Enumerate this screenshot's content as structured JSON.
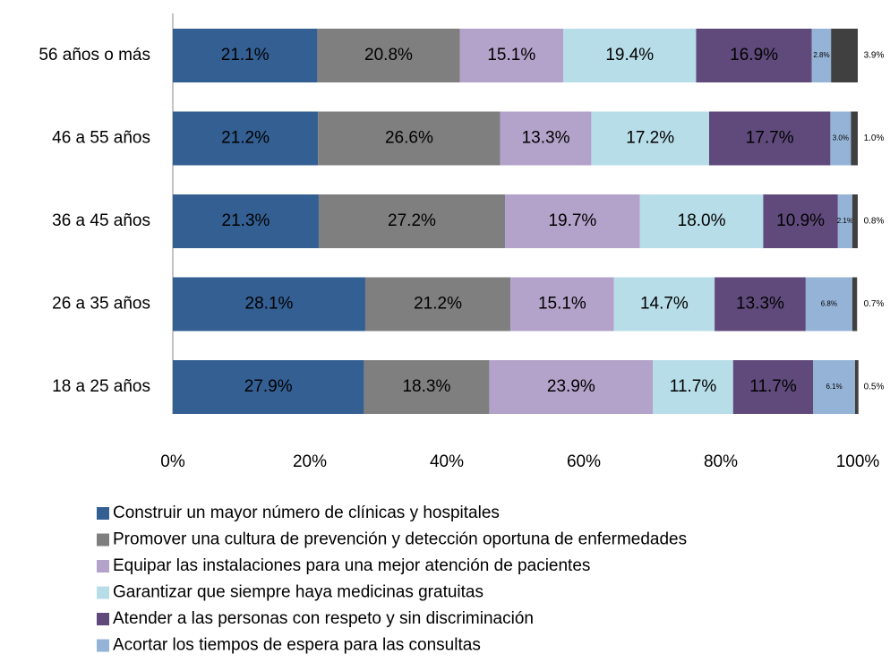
{
  "chart_data": {
    "type": "stacked-barh",
    "categories": [
      "56 años o más",
      "46 a 55 años",
      "36 a 45 años",
      "26 a 35 años",
      "18 a 25 años"
    ],
    "series": [
      {
        "name": "Construir un mayor número de clínicas y hospitales",
        "color": "#335f93",
        "values": [
          21.1,
          21.2,
          21.3,
          28.1,
          27.9
        ],
        "value_labels": [
          "21.1%",
          "21.2%",
          "21.3%",
          "28.1%",
          "27.9%"
        ]
      },
      {
        "name": "Promover una cultura de prevención y detección oportuna de enfermedades",
        "color": "#7f7f7f",
        "values": [
          20.8,
          26.6,
          27.2,
          21.2,
          18.3
        ],
        "value_labels": [
          "20.8%",
          "26.6%",
          "27.2%",
          "21.2%",
          "18.3%"
        ]
      },
      {
        "name": "Equipar las instalaciones para una mejor atención de pacientes",
        "color": "#b3a2c9",
        "values": [
          15.1,
          13.3,
          19.7,
          15.1,
          23.9
        ],
        "value_labels": [
          "15.1%",
          "13.3%",
          "19.7%",
          "15.1%",
          "23.9%"
        ]
      },
      {
        "name": "Garantizar que siempre haya medicinas gratuitas",
        "color": "#b7dde8",
        "values": [
          19.4,
          17.2,
          18.0,
          14.7,
          11.7
        ],
        "value_labels": [
          "19.4%",
          "17.2%",
          "18.0%",
          "14.7%",
          "11.7%"
        ]
      },
      {
        "name": "Atender a las personas con respeto y sin discriminación",
        "color": "#5f4a7b",
        "values": [
          16.9,
          17.7,
          10.9,
          13.3,
          11.7
        ],
        "value_labels": [
          "16.9%",
          "17.7%",
          "10.9%",
          "13.3%",
          "11.7%"
        ]
      },
      {
        "name": "Acortar los tiempos de espera para las consultas",
        "color": "#95b3d7",
        "values": [
          2.8,
          3.0,
          2.1,
          6.8,
          6.1
        ],
        "value_labels": [
          "2.8%",
          "3.0%",
          "2.1%",
          "6.8%",
          "6.1%"
        ]
      },
      {
        "color": "#404040",
        "values": [
          3.9,
          1.0,
          0.8,
          0.7,
          0.5
        ],
        "value_labels": [
          "3.9%",
          "1.0%",
          "0.8%",
          "0.7%",
          "0.5%"
        ]
      }
    ],
    "xlim": [
      0,
      100
    ],
    "xticks": [
      {
        "value": 0,
        "label": "0%"
      },
      {
        "value": 20,
        "label": "20%"
      },
      {
        "value": 40,
        "label": "40%"
      },
      {
        "value": 60,
        "label": "60%"
      },
      {
        "value": 80,
        "label": "80%"
      },
      {
        "value": 100,
        "label": "100%"
      }
    ]
  }
}
